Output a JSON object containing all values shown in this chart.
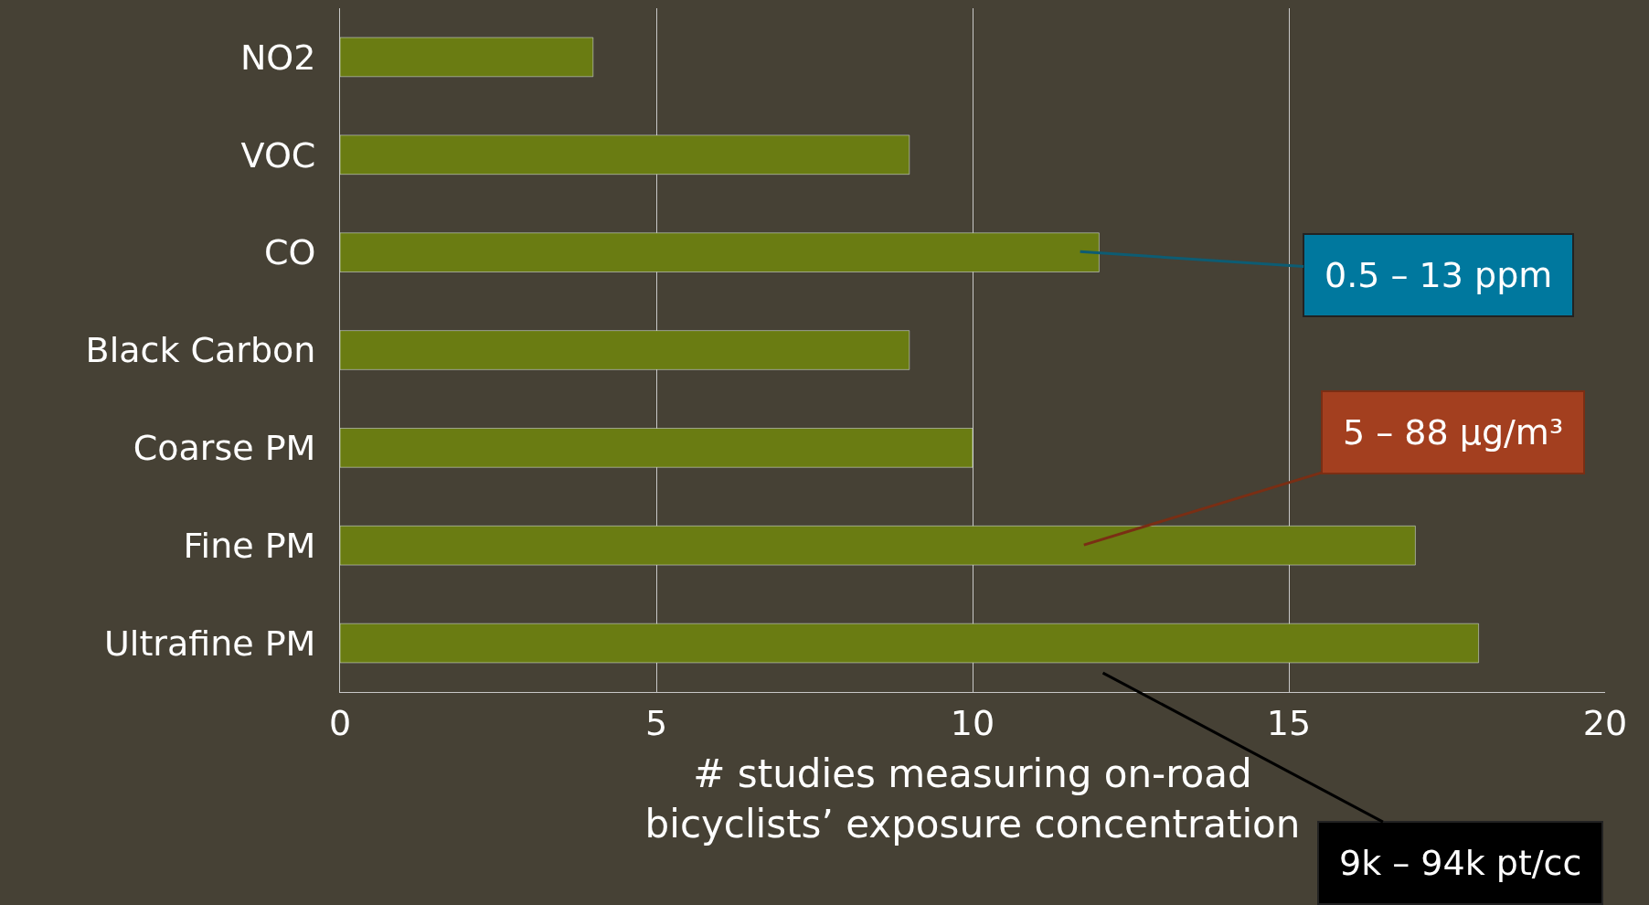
{
  "chart_data": {
    "type": "bar",
    "orientation": "horizontal",
    "xlabel": "# studies measuring on-road\nbicyclists’ exposure concentration",
    "categories": [
      "NO2",
      "VOC",
      "CO",
      "Black Carbon",
      "Coarse PM",
      "Fine PM",
      "Ultrafine PM"
    ],
    "values": [
      4,
      9,
      12,
      9,
      10,
      17,
      18
    ],
    "color": "#6a7c12",
    "xlim": [
      0,
      20
    ],
    "xticks": [
      0,
      5,
      10,
      15,
      20
    ],
    "grid": "x",
    "legend": false,
    "annotations": [
      "0.5 – 13 ppm",
      "5 – 88 μg/m³",
      "9k – 94k pt/cc"
    ]
  }
}
